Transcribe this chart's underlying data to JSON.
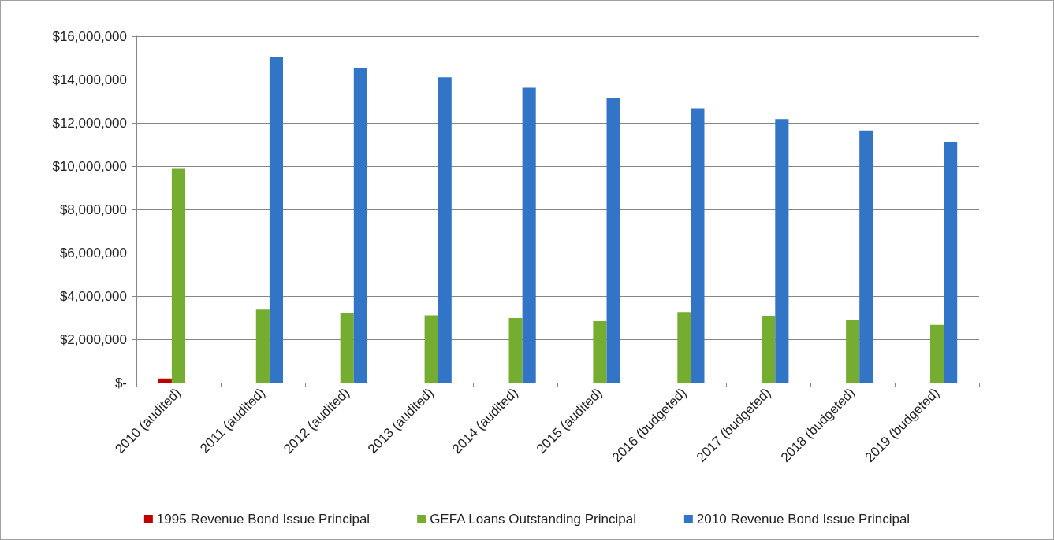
{
  "chart_data": {
    "type": "bar",
    "categories": [
      "2010 (audited)",
      "2011 (audited)",
      "2012 (audited)",
      "2013 (audited)",
      "2014 (audited)",
      "2015 (audited)",
      "2016 (budgeted)",
      "2017 (budgeted)",
      "2018 (budgeted)",
      "2019 (budgeted)"
    ],
    "series": [
      {
        "name": "1995 Revenue Bond Issue Principal",
        "color": "#c00000",
        "values": [
          190000,
          null,
          null,
          null,
          null,
          null,
          null,
          null,
          null,
          null
        ]
      },
      {
        "name": "GEFA Loans Outstanding Principal",
        "color": "#74ad30",
        "values": [
          9870000,
          3370000,
          3240000,
          3110000,
          2980000,
          2840000,
          3260000,
          3060000,
          2870000,
          2660000
        ]
      },
      {
        "name": "2010 Revenue Bond Issue Principal",
        "color": "#3275c6",
        "values": [
          null,
          15030000,
          14530000,
          14100000,
          13620000,
          13140000,
          12670000,
          12170000,
          11650000,
          11110000
        ]
      }
    ],
    "ylim": [
      0,
      16000000
    ],
    "yticks": [
      {
        "value": 0,
        "label": "$-"
      },
      {
        "value": 2000000,
        "label": "$2,000,000"
      },
      {
        "value": 4000000,
        "label": "$4,000,000"
      },
      {
        "value": 6000000,
        "label": "$6,000,000"
      },
      {
        "value": 8000000,
        "label": "$8,000,000"
      },
      {
        "value": 10000000,
        "label": "$10,000,000"
      },
      {
        "value": 12000000,
        "label": "$12,000,000"
      },
      {
        "value": 14000000,
        "label": "$14,000,000"
      },
      {
        "value": 16000000,
        "label": "$16,000,000"
      }
    ],
    "grid": "y",
    "legend": "bottom"
  }
}
